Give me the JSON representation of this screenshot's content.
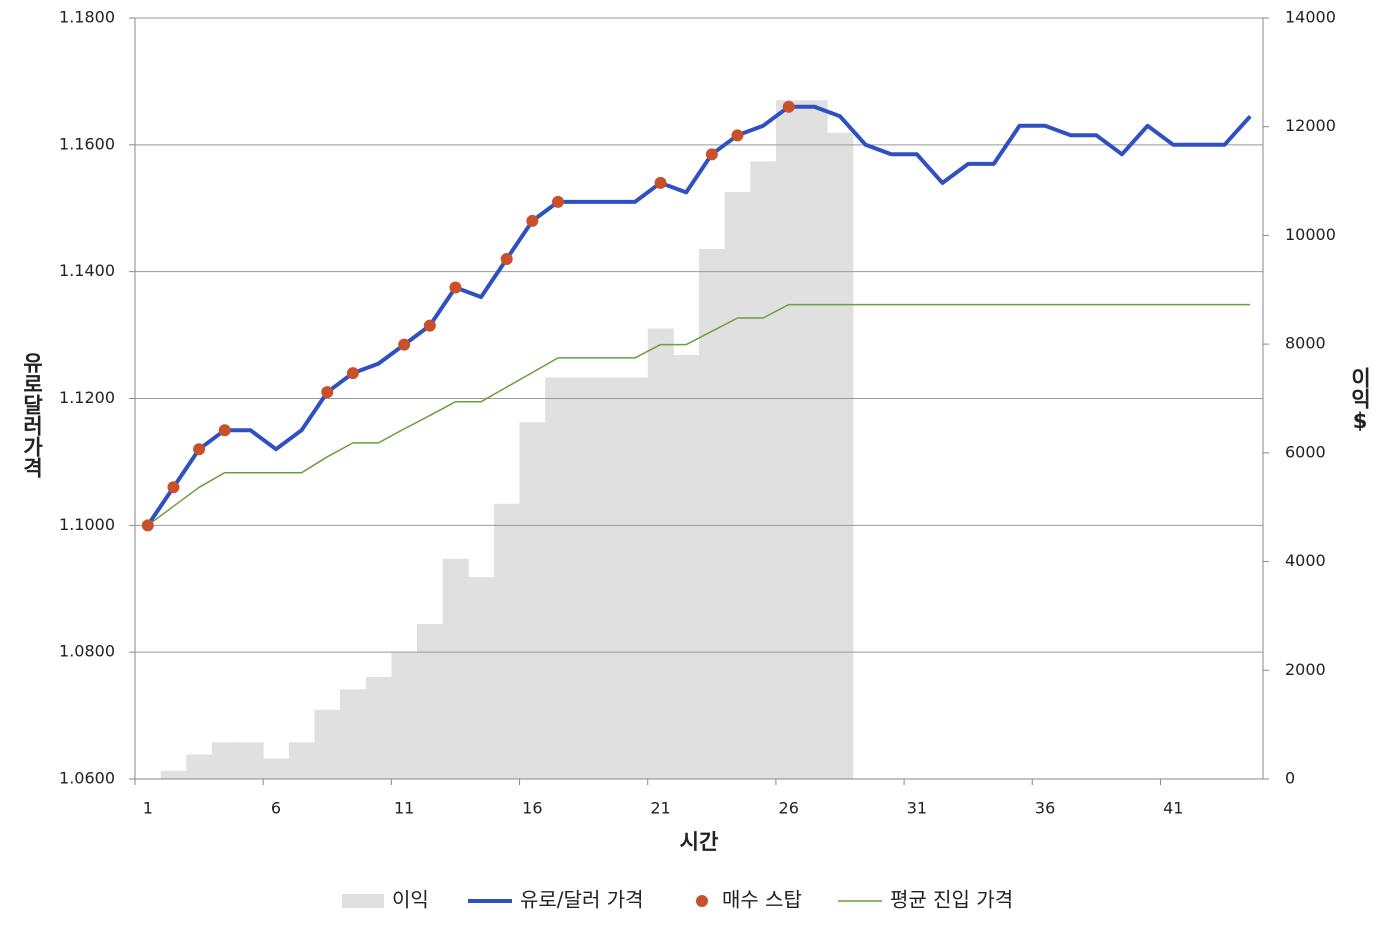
{
  "chart_data": {
    "type": "combo",
    "x_label": "시간",
    "y_label": "유로달러가격",
    "y2_label": "이익$",
    "categories": [
      "1",
      null,
      null,
      null,
      null,
      "6",
      null,
      null,
      null,
      null,
      "11",
      null,
      null,
      null,
      null,
      "16",
      null,
      null,
      null,
      null,
      "21",
      null,
      null,
      null,
      null,
      "26",
      null,
      null,
      null,
      null,
      "31",
      null,
      null,
      null,
      null,
      "36",
      null,
      null,
      null,
      null,
      "41",
      null,
      null,
      null
    ],
    "ylim": [
      1.06,
      1.18
    ],
    "yticks": [
      {
        "value": 1.06,
        "label": "1.0600"
      },
      {
        "value": 1.08,
        "label": "1.0800"
      },
      {
        "value": 1.1,
        "label": "1.1000"
      },
      {
        "value": 1.12,
        "label": "1.1200"
      },
      {
        "value": 1.14,
        "label": "1.1400"
      },
      {
        "value": 1.16,
        "label": "1.1600"
      },
      {
        "value": 1.18,
        "label": "1.1800"
      }
    ],
    "y2lim": [
      0,
      14000
    ],
    "y2ticks": [
      0,
      2000,
      4000,
      6000,
      8000,
      10000,
      12000,
      14000
    ],
    "grid": true,
    "legend": "bottom",
    "series": [
      {
        "name": "이익",
        "type": "bar",
        "axis": "y2",
        "color": "#e0e0e0",
        "values": [
          0,
          150,
          450,
          675,
          675,
          375,
          675,
          1275,
          1650,
          1875,
          2325,
          2850,
          4050,
          3713,
          5063,
          6563,
          7388,
          7388,
          7388,
          7388,
          8288,
          7800,
          9750,
          10800,
          11363,
          12488,
          12488,
          11888,
          null,
          null,
          null,
          null,
          null,
          null,
          null,
          null,
          null,
          null,
          null,
          null,
          null,
          null,
          null,
          null
        ]
      },
      {
        "name": "유로/달러 가격",
        "type": "line",
        "color": "#2f50c0",
        "values": [
          1.1,
          1.106,
          1.112,
          1.115,
          1.115,
          1.112,
          1.115,
          1.121,
          1.124,
          1.1255,
          1.1285,
          1.1315,
          1.1375,
          1.136,
          1.142,
          1.148,
          1.151,
          1.151,
          1.151,
          1.151,
          1.154,
          1.1525,
          1.1585,
          1.1615,
          1.163,
          1.166,
          1.166,
          1.1645,
          1.16,
          1.1585,
          1.1585,
          1.154,
          1.157,
          1.157,
          1.163,
          1.163,
          1.1615,
          1.1615,
          1.1585,
          1.163,
          1.16,
          1.16,
          1.16,
          1.1645
        ]
      },
      {
        "name": "매수 스탑",
        "type": "scatter",
        "color": "#c8502a",
        "values": [
          1.1,
          1.106,
          1.112,
          1.115,
          null,
          null,
          null,
          1.121,
          1.124,
          null,
          1.1285,
          1.1315,
          1.1375,
          null,
          1.142,
          1.148,
          1.151,
          null,
          null,
          null,
          1.154,
          null,
          1.1585,
          1.1615,
          null,
          1.166,
          null,
          null,
          null,
          null,
          null,
          null,
          null,
          null,
          null,
          null,
          null,
          null,
          null,
          null,
          null,
          null,
          null,
          null
        ]
      },
      {
        "name": "평균 진입 가격",
        "type": "line",
        "color": "#6a9e3f",
        "values": [
          1.1,
          1.103,
          1.106,
          1.1083,
          1.1083,
          1.1083,
          1.1083,
          1.1108,
          1.113,
          1.113,
          1.1152,
          1.1173,
          1.1195,
          1.1195,
          1.1218,
          1.1241,
          1.1264,
          1.1264,
          1.1264,
          1.1264,
          1.1285,
          1.1285,
          1.1306,
          1.1327,
          1.1327,
          1.1348,
          1.1348,
          1.1348,
          1.1348,
          1.1348,
          1.1348,
          1.1348,
          1.1348,
          1.1348,
          1.1348,
          1.1348,
          1.1348,
          1.1348,
          1.1348,
          1.1348,
          1.1348,
          1.1348,
          1.1348,
          1.1348
        ]
      }
    ]
  }
}
